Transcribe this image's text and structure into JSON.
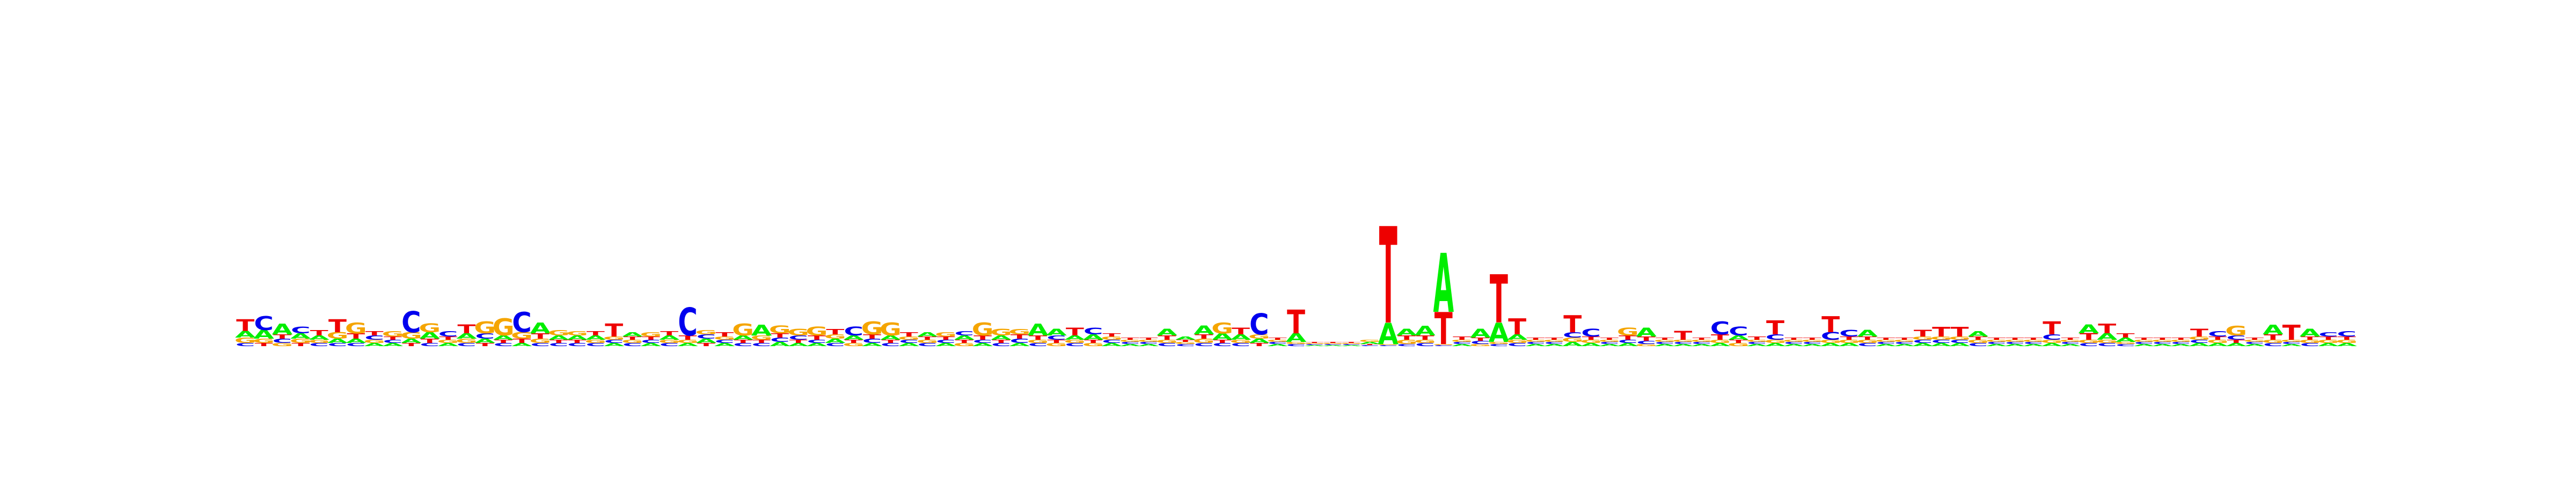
{
  "chart_data": {
    "type": "sequence-logo",
    "title": "",
    "xlabel": "",
    "ylabel": "",
    "axes_visible": false,
    "grid": false,
    "alphabet": [
      "A",
      "C",
      "G",
      "T"
    ],
    "colors": {
      "A": "#00ee00",
      "C": "#0000ee",
      "G": "#f5a500",
      "T": "#ee0000"
    },
    "scale_max_bits": 2,
    "positions": [
      {
        "A": 0.06,
        "C": 0.03,
        "G": 0.05,
        "T": 0.11
      },
      {
        "A": 0.08,
        "C": 0.13,
        "G": 0.04,
        "T": 0.03
      },
      {
        "A": 0.1,
        "C": 0.04,
        "G": 0.03,
        "T": 0.04
      },
      {
        "A": 0.05,
        "C": 0.06,
        "G": 0.04,
        "T": 0.03
      },
      {
        "A": 0.04,
        "C": 0.03,
        "G": 0.03,
        "T": 0.05
      },
      {
        "A": 0.04,
        "C": 0.03,
        "G": 0.06,
        "T": 0.12
      },
      {
        "A": 0.04,
        "C": 0.03,
        "G": 0.1,
        "T": 0.05
      },
      {
        "A": 0.03,
        "C": 0.04,
        "G": 0.03,
        "T": 0.04
      },
      {
        "A": 0.03,
        "C": 0.03,
        "G": 0.05,
        "T": 0.03
      },
      {
        "A": 0.04,
        "C": 0.2,
        "G": 0.06,
        "T": 0.03
      },
      {
        "A": 0.06,
        "C": 0.03,
        "G": 0.08,
        "T": 0.04
      },
      {
        "A": 0.03,
        "C": 0.05,
        "G": 0.03,
        "T": 0.03
      },
      {
        "A": 0.05,
        "C": 0.03,
        "G": 0.04,
        "T": 0.08
      },
      {
        "A": 0.04,
        "C": 0.05,
        "G": 0.11,
        "T": 0.03
      },
      {
        "A": 0.04,
        "C": 0.03,
        "G": 0.16,
        "T": 0.03
      },
      {
        "A": 0.03,
        "C": 0.19,
        "G": 0.06,
        "T": 0.04
      },
      {
        "A": 0.1,
        "C": 0.03,
        "G": 0.04,
        "T": 0.05
      },
      {
        "A": 0.04,
        "C": 0.03,
        "G": 0.05,
        "T": 0.03
      },
      {
        "A": 0.04,
        "C": 0.03,
        "G": 0.04,
        "T": 0.03
      },
      {
        "A": 0.04,
        "C": 0.03,
        "G": 0.03,
        "T": 0.04
      },
      {
        "A": 0.03,
        "C": 0.03,
        "G": 0.03,
        "T": 0.12
      },
      {
        "A": 0.04,
        "C": 0.03,
        "G": 0.03,
        "T": 0.03
      },
      {
        "A": 0.03,
        "C": 0.03,
        "G": 0.04,
        "T": 0.03
      },
      {
        "A": 0.04,
        "C": 0.03,
        "G": 0.03,
        "T": 0.04
      },
      {
        "A": 0.03,
        "C": 0.26,
        "G": 0.03,
        "T": 0.04
      },
      {
        "A": 0.04,
        "C": 0.04,
        "G": 0.04,
        "T": 0.03
      },
      {
        "A": 0.03,
        "C": 0.03,
        "G": 0.03,
        "T": 0.04
      },
      {
        "A": 0.04,
        "C": 0.03,
        "G": 0.11,
        "T": 0.03
      },
      {
        "A": 0.1,
        "C": 0.03,
        "G": 0.04,
        "T": 0.03
      },
      {
        "A": 0.04,
        "C": 0.04,
        "G": 0.07,
        "T": 0.04
      },
      {
        "A": 0.03,
        "C": 0.04,
        "G": 0.06,
        "T": 0.03
      },
      {
        "A": 0.03,
        "C": 0.03,
        "G": 0.08,
        "T": 0.04
      },
      {
        "A": 0.04,
        "C": 0.03,
        "G": 0.04,
        "T": 0.05
      },
      {
        "A": 0.04,
        "C": 0.08,
        "G": 0.03,
        "T": 0.03
      },
      {
        "A": 0.03,
        "C": 0.04,
        "G": 0.12,
        "T": 0.04
      },
      {
        "A": 0.04,
        "C": 0.03,
        "G": 0.12,
        "T": 0.03
      },
      {
        "A": 0.03,
        "C": 0.03,
        "G": 0.03,
        "T": 0.04
      },
      {
        "A": 0.04,
        "C": 0.03,
        "G": 0.03,
        "T": 0.03
      },
      {
        "A": 0.03,
        "C": 0.03,
        "G": 0.04,
        "T": 0.03
      },
      {
        "A": 0.04,
        "C": 0.04,
        "G": 0.03,
        "T": 0.03
      },
      {
        "A": 0.03,
        "C": 0.03,
        "G": 0.12,
        "T": 0.04
      },
      {
        "A": 0.04,
        "C": 0.03,
        "G": 0.06,
        "T": 0.03
      },
      {
        "A": 0.03,
        "C": 0.04,
        "G": 0.05,
        "T": 0.04
      },
      {
        "A": 0.11,
        "C": 0.03,
        "G": 0.03,
        "T": 0.04
      },
      {
        "A": 0.06,
        "C": 0.04,
        "G": 0.03,
        "T": 0.03
      },
      {
        "A": 0.04,
        "C": 0.03,
        "G": 0.03,
        "T": 0.07
      },
      {
        "A": 0.05,
        "C": 0.06,
        "G": 0.03,
        "T": 0.03
      },
      {
        "A": 0.03,
        "C": 0.03,
        "G": 0.03,
        "T": 0.03
      },
      {
        "A": 0.02,
        "C": 0.02,
        "G": 0.02,
        "T": 0.02
      },
      {
        "A": 0.02,
        "C": 0.02,
        "G": 0.02,
        "T": 0.02
      },
      {
        "A": 0.06,
        "C": 0.03,
        "G": 0.03,
        "T": 0.04
      },
      {
        "A": 0.03,
        "C": 0.02,
        "G": 0.02,
        "T": 0.02
      },
      {
        "A": 0.08,
        "C": 0.03,
        "G": 0.04,
        "T": 0.04
      },
      {
        "A": 0.06,
        "C": 0.03,
        "G": 0.1,
        "T": 0.03
      },
      {
        "A": 0.05,
        "C": 0.03,
        "G": 0.03,
        "T": 0.06
      },
      {
        "A": 0.04,
        "C": 0.2,
        "G": 0.04,
        "T": 0.03
      },
      {
        "A": 0.02,
        "C": 0.02,
        "G": 0.02,
        "T": 0.02
      },
      {
        "A": 0.08,
        "C": 0.02,
        "G": 0.02,
        "T": 0.22
      },
      {
        "A": 0.01,
        "C": 0.01,
        "G": 0.01,
        "T": 0.01
      },
      {
        "A": 0.01,
        "C": 0.01,
        "G": 0.01,
        "T": 0.01
      },
      {
        "A": 0.01,
        "C": 0.01,
        "G": 0.01,
        "T": 0.01
      },
      {
        "A": 0.02,
        "C": 0.01,
        "G": 0.02,
        "T": 0.01
      },
      {
        "A": 0.2,
        "C": 0.01,
        "G": 0.01,
        "T": 0.9
      },
      {
        "A": 0.06,
        "C": 0.02,
        "G": 0.04,
        "T": 0.04
      },
      {
        "A": 0.09,
        "C": 0.03,
        "G": 0.03,
        "T": 0.04
      },
      {
        "A": 0.55,
        "C": 0.01,
        "G": 0.01,
        "T": 0.3
      },
      {
        "A": 0.02,
        "C": 0.02,
        "G": 0.02,
        "T": 0.03
      },
      {
        "A": 0.08,
        "C": 0.03,
        "G": 0.02,
        "T": 0.03
      },
      {
        "A": 0.18,
        "C": 0.02,
        "G": 0.02,
        "T": 0.45
      },
      {
        "A": 0.05,
        "C": 0.03,
        "G": 0.03,
        "T": 0.15
      },
      {
        "A": 0.02,
        "C": 0.02,
        "G": 0.02,
        "T": 0.02
      },
      {
        "A": 0.02,
        "C": 0.02,
        "G": 0.02,
        "T": 0.02
      },
      {
        "A": 0.04,
        "C": 0.05,
        "G": 0.04,
        "T": 0.16
      },
      {
        "A": 0.03,
        "C": 0.07,
        "G": 0.03,
        "T": 0.03
      },
      {
        "A": 0.02,
        "C": 0.02,
        "G": 0.02,
        "T": 0.02
      },
      {
        "A": 0.03,
        "C": 0.03,
        "G": 0.07,
        "T": 0.04
      },
      {
        "A": 0.08,
        "C": 0.03,
        "G": 0.02,
        "T": 0.04
      },
      {
        "A": 0.02,
        "C": 0.02,
        "G": 0.02,
        "T": 0.02
      },
      {
        "A": 0.02,
        "C": 0.02,
        "G": 0.02,
        "T": 0.08
      },
      {
        "A": 0.02,
        "C": 0.02,
        "G": 0.02,
        "T": 0.02
      },
      {
        "A": 0.03,
        "C": 0.12,
        "G": 0.03,
        "T": 0.05
      },
      {
        "A": 0.04,
        "C": 0.08,
        "G": 0.03,
        "T": 0.03
      },
      {
        "A": 0.02,
        "C": 0.02,
        "G": 0.02,
        "T": 0.03
      },
      {
        "A": 0.03,
        "C": 0.05,
        "G": 0.03,
        "T": 0.13
      },
      {
        "A": 0.02,
        "C": 0.02,
        "G": 0.02,
        "T": 0.02
      },
      {
        "A": 0.02,
        "C": 0.02,
        "G": 0.02,
        "T": 0.02
      },
      {
        "A": 0.03,
        "C": 0.07,
        "G": 0.03,
        "T": 0.15
      },
      {
        "A": 0.03,
        "C": 0.06,
        "G": 0.03,
        "T": 0.03
      },
      {
        "A": 0.06,
        "C": 0.03,
        "G": 0.03,
        "T": 0.03
      },
      {
        "A": 0.02,
        "C": 0.02,
        "G": 0.02,
        "T": 0.02
      },
      {
        "A": 0.02,
        "C": 0.02,
        "G": 0.02,
        "T": 0.02
      },
      {
        "A": 0.03,
        "C": 0.03,
        "G": 0.03,
        "T": 0.06
      },
      {
        "A": 0.03,
        "C": 0.03,
        "G": 0.03,
        "T": 0.09
      },
      {
        "A": 0.03,
        "C": 0.03,
        "G": 0.03,
        "T": 0.09
      },
      {
        "A": 0.05,
        "C": 0.03,
        "G": 0.03,
        "T": 0.03
      },
      {
        "A": 0.02,
        "C": 0.02,
        "G": 0.02,
        "T": 0.02
      },
      {
        "A": 0.02,
        "C": 0.02,
        "G": 0.02,
        "T": 0.02
      },
      {
        "A": 0.02,
        "C": 0.02,
        "G": 0.02,
        "T": 0.02
      },
      {
        "A": 0.03,
        "C": 0.05,
        "G": 0.03,
        "T": 0.12
      },
      {
        "A": 0.02,
        "C": 0.02,
        "G": 0.02,
        "T": 0.02
      },
      {
        "A": 0.08,
        "C": 0.03,
        "G": 0.03,
        "T": 0.06
      },
      {
        "A": 0.06,
        "C": 0.03,
        "G": 0.03,
        "T": 0.09
      },
      {
        "A": 0.04,
        "C": 0.02,
        "G": 0.02,
        "T": 0.04
      },
      {
        "A": 0.02,
        "C": 0.02,
        "G": 0.02,
        "T": 0.02
      },
      {
        "A": 0.02,
        "C": 0.02,
        "G": 0.02,
        "T": 0.02
      },
      {
        "A": 0.02,
        "C": 0.02,
        "G": 0.02,
        "T": 0.02
      },
      {
        "A": 0.03,
        "C": 0.03,
        "G": 0.03,
        "T": 0.07
      },
      {
        "A": 0.03,
        "C": 0.05,
        "G": 0.03,
        "T": 0.03
      },
      {
        "A": 0.03,
        "C": 0.04,
        "G": 0.09,
        "T": 0.03
      },
      {
        "A": 0.02,
        "C": 0.02,
        "G": 0.02,
        "T": 0.02
      },
      {
        "A": 0.09,
        "C": 0.03,
        "G": 0.03,
        "T": 0.05
      },
      {
        "A": 0.02,
        "C": 0.02,
        "G": 0.02,
        "T": 0.14
      },
      {
        "A": 0.07,
        "C": 0.03,
        "G": 0.03,
        "T": 0.03
      },
      {
        "A": 0.03,
        "C": 0.04,
        "G": 0.03,
        "T": 0.03
      },
      {
        "A": 0.03,
        "C": 0.05,
        "G": 0.03,
        "T": 0.03
      }
    ]
  }
}
